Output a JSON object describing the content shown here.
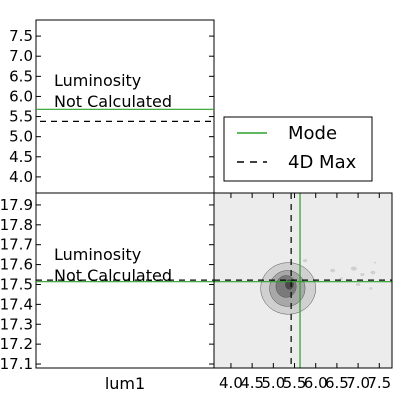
{
  "chart_data": {
    "type": "corner",
    "colors": {
      "mode": "#2ca02c",
      "max4d": "#000000",
      "contour_bg": "#ececec",
      "contour_levels": [
        "#d0d0d0",
        "#a8a8a8",
        "#7a7a7a",
        "#4a4a4a"
      ]
    },
    "legend": {
      "placement": "top-right",
      "entries": [
        {
          "name": "Mode",
          "style": "solid",
          "color": "#2ca02c"
        },
        {
          "name": "4D Max",
          "style": "dashed",
          "color": "#000000"
        }
      ]
    },
    "panels": [
      {
        "id": "top-left",
        "xlim": [
          3.6,
          7.8
        ],
        "ylim": [
          3.6,
          7.9
        ],
        "yticks": [
          "4.0",
          "4.5",
          "5.0",
          "5.5",
          "6.0",
          "6.5",
          "7.0",
          "7.5"
        ],
        "ytick_values": [
          4.0,
          4.5,
          5.0,
          5.5,
          6.0,
          6.5,
          7.0,
          7.5
        ],
        "annotation": [
          "Luminosity",
          "Not Calculated"
        ],
        "mode_y": 5.68,
        "max4d_y": 5.38
      },
      {
        "id": "bottom-left",
        "xlabel": "lum1",
        "ylim": [
          17.08,
          17.96
        ],
        "yticks": [
          "17.9",
          "17.8",
          "17.7",
          "17.6",
          "17.5",
          "17.4",
          "17.3",
          "17.2",
          "17.1"
        ],
        "ytick_values": [
          17.9,
          17.8,
          17.7,
          17.6,
          17.5,
          17.4,
          17.3,
          17.2,
          17.1
        ],
        "annotation": [
          "Luminosity",
          "Not Calculated"
        ],
        "mode_y": 17.514,
        "max4d_y": 17.522
      },
      {
        "id": "bottom-right",
        "xlim": [
          3.6,
          7.8
        ],
        "ylim": [
          17.08,
          17.96
        ],
        "xticks": [
          "4.0",
          "4.5",
          "5.0",
          "5.5",
          "6.0",
          "6.5",
          "7.0",
          "7.5"
        ],
        "xtick_values": [
          4.0,
          4.5,
          5.0,
          5.5,
          6.0,
          6.5,
          7.0,
          7.5
        ],
        "mode_x": 5.63,
        "max4d_x": 5.42,
        "mode_y": 17.514,
        "max4d_y": 17.522,
        "contours": [
          {
            "level": 1,
            "cx": 5.35,
            "cy": 17.48,
            "rx": 0.65,
            "ry": 0.13
          },
          {
            "level": 2,
            "cx": 5.33,
            "cy": 17.48,
            "rx": 0.42,
            "ry": 0.09
          },
          {
            "level": 3,
            "cx": 5.3,
            "cy": 17.49,
            "rx": 0.24,
            "ry": 0.055
          },
          {
            "level": 4,
            "cx": 5.38,
            "cy": 17.5,
            "rx": 0.1,
            "ry": 0.025
          }
        ],
        "scatter_blobs": [
          {
            "x": 6.4,
            "y": 17.57,
            "r": 0.06
          },
          {
            "x": 6.9,
            "y": 17.58,
            "r": 0.07
          },
          {
            "x": 7.1,
            "y": 17.55,
            "r": 0.05
          },
          {
            "x": 7.35,
            "y": 17.56,
            "r": 0.06
          },
          {
            "x": 6.6,
            "y": 17.53,
            "r": 0.04
          },
          {
            "x": 7.0,
            "y": 17.5,
            "r": 0.05
          },
          {
            "x": 7.3,
            "y": 17.48,
            "r": 0.04
          },
          {
            "x": 7.4,
            "y": 17.61,
            "r": 0.03
          },
          {
            "x": 5.75,
            "y": 17.62,
            "r": 0.05
          }
        ]
      }
    ]
  }
}
